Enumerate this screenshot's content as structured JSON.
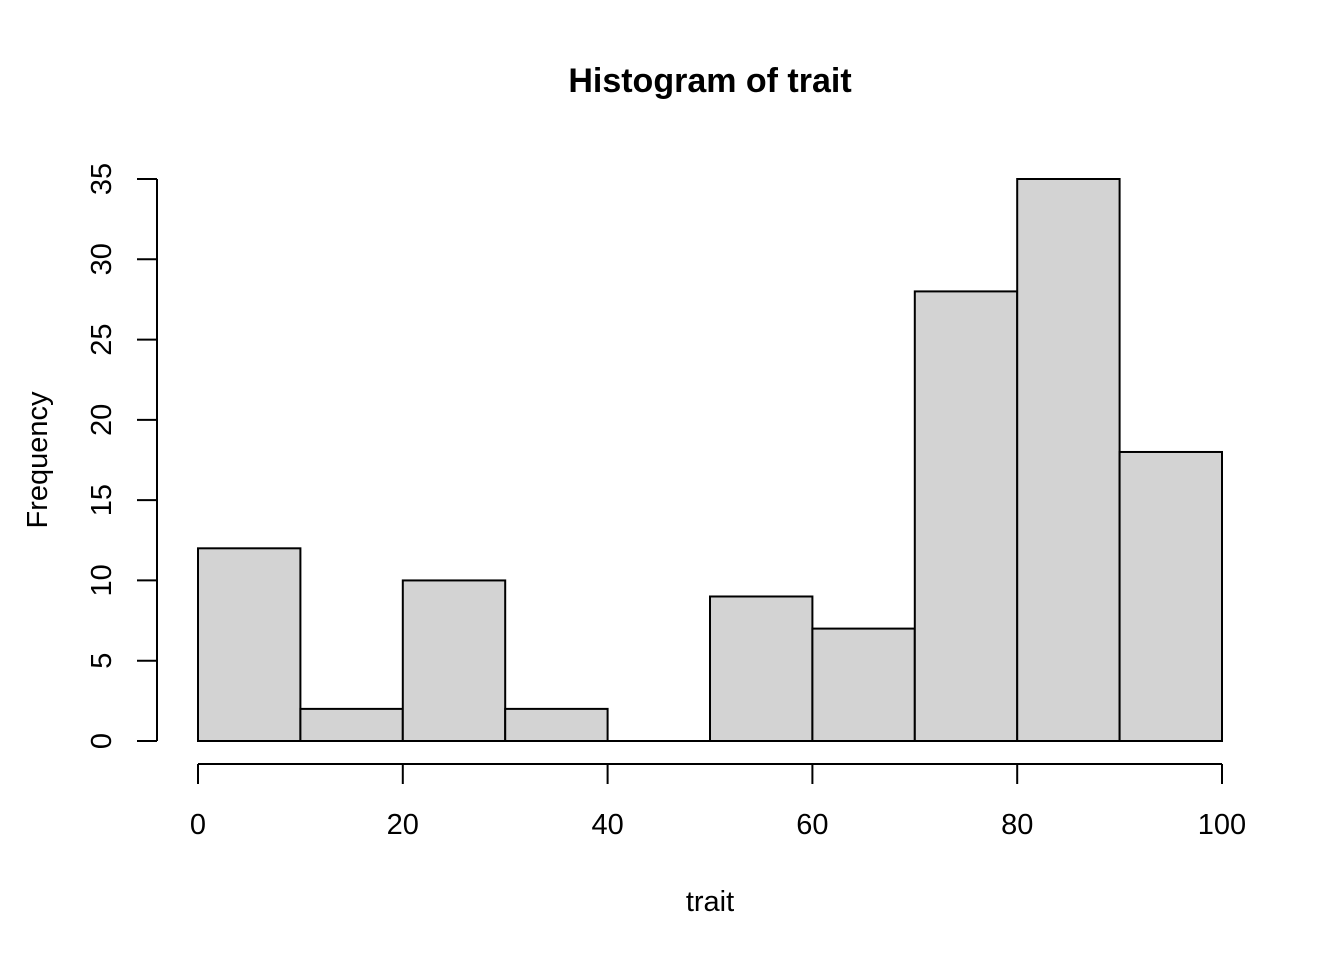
{
  "chart_data": {
    "type": "bar",
    "title": "Histogram of trait",
    "xlabel": "trait",
    "ylabel": "Frequency",
    "bins": [
      {
        "start": 0,
        "end": 10,
        "count": 12
      },
      {
        "start": 10,
        "end": 20,
        "count": 2
      },
      {
        "start": 20,
        "end": 30,
        "count": 10
      },
      {
        "start": 30,
        "end": 40,
        "count": 2
      },
      {
        "start": 40,
        "end": 50,
        "count": 0
      },
      {
        "start": 50,
        "end": 60,
        "count": 9
      },
      {
        "start": 60,
        "end": 70,
        "count": 7
      },
      {
        "start": 70,
        "end": 80,
        "count": 28
      },
      {
        "start": 80,
        "end": 90,
        "count": 35
      },
      {
        "start": 90,
        "end": 100,
        "count": 18
      }
    ],
    "xticks": [
      0,
      20,
      40,
      60,
      80,
      100
    ],
    "yticks": [
      0,
      5,
      10,
      15,
      20,
      25,
      30,
      35
    ],
    "xlim": [
      0,
      100
    ],
    "ylim": [
      0,
      35
    ],
    "bar_color": "#d3d3d3",
    "grid": false,
    "legend": "none"
  }
}
